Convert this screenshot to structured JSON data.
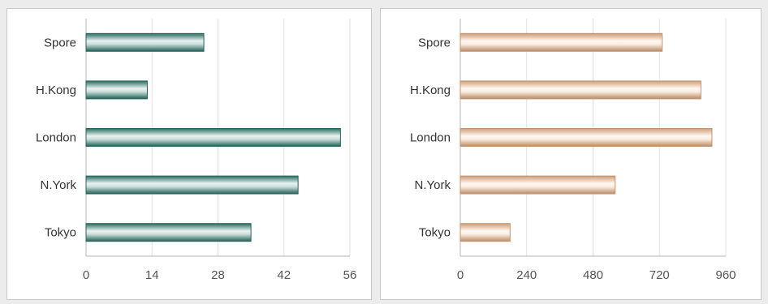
{
  "chart_data": [
    {
      "type": "bar",
      "orientation": "horizontal",
      "categories": [
        "Spore",
        "H.Kong",
        "London",
        "N.York",
        "Tokyo"
      ],
      "values": [
        25,
        13,
        54,
        45,
        35
      ],
      "xlim": [
        0,
        56
      ],
      "xticks": [
        0,
        14,
        28,
        42,
        56
      ],
      "grid": true,
      "color": "#2f7f73"
    },
    {
      "type": "bar",
      "orientation": "horizontal",
      "categories": [
        "Spore",
        "H.Kong",
        "London",
        "N.York",
        "Tokyo"
      ],
      "values": [
        730,
        870,
        910,
        560,
        180
      ],
      "xlim": [
        0,
        960
      ],
      "xticks": [
        0,
        240,
        480,
        720,
        960
      ],
      "grid": true,
      "color": "#f4b98a"
    }
  ]
}
